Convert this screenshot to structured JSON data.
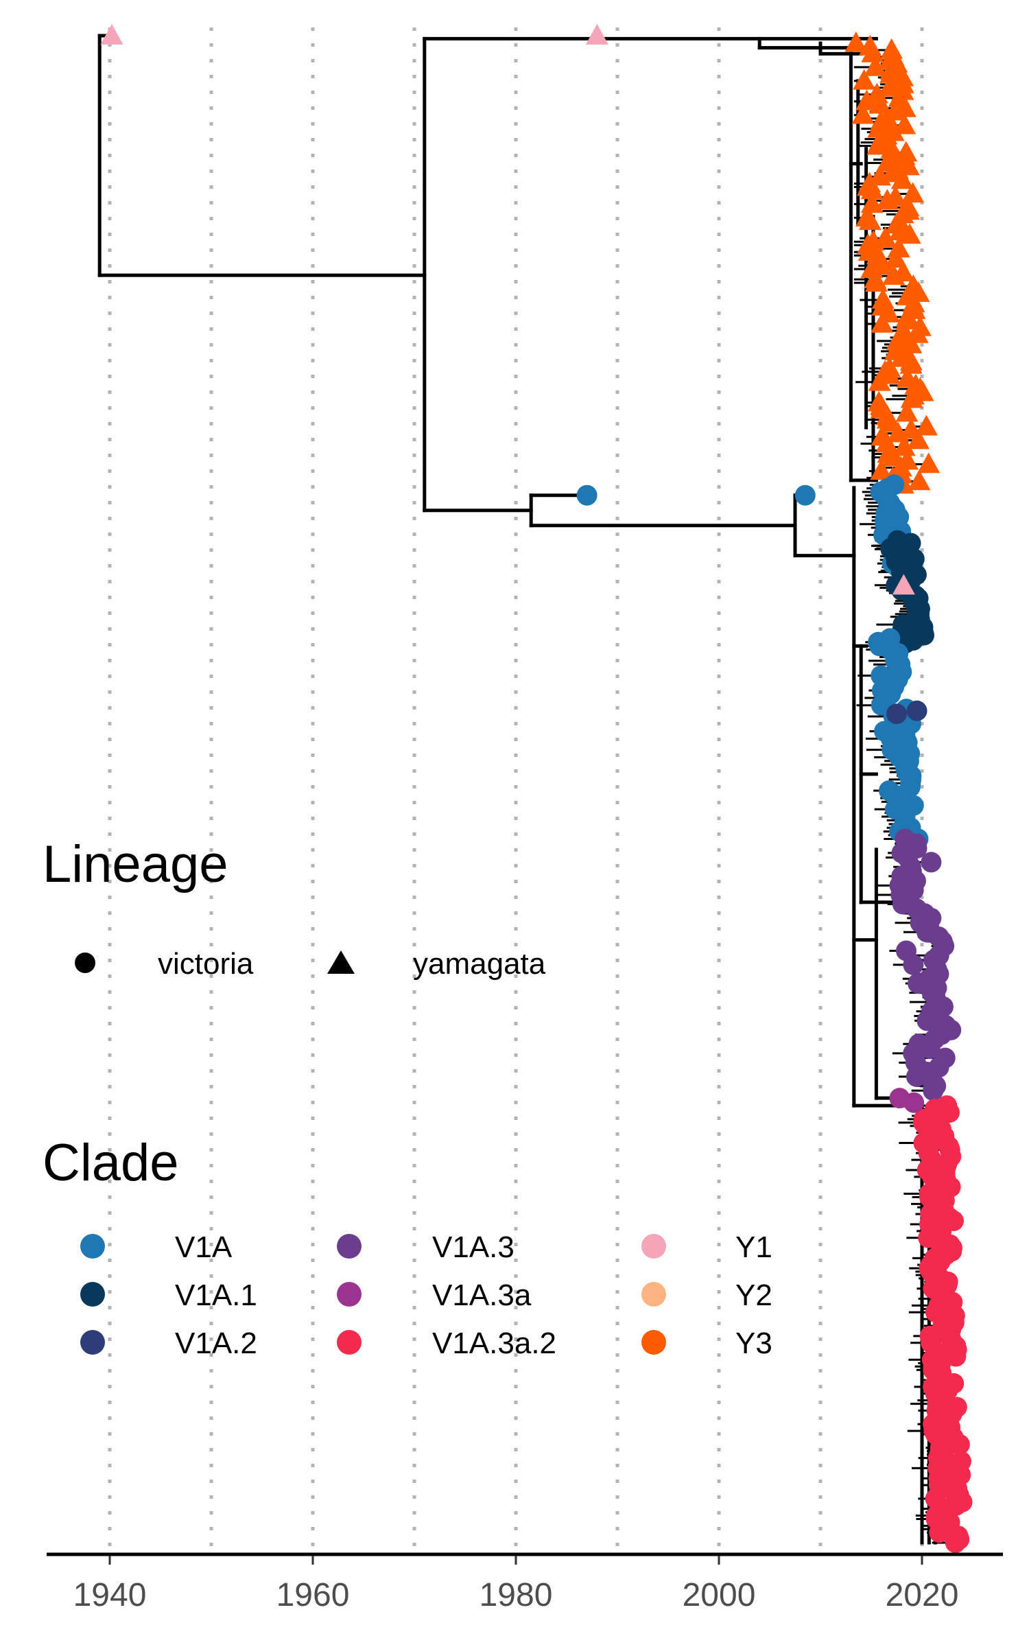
{
  "chart_data": {
    "type": "scatter",
    "title": "",
    "xlabel": "",
    "ylabel": "",
    "xlim": [
      1934,
      2028
    ],
    "x_ticks": [
      1940,
      1960,
      1980,
      2000,
      2020
    ],
    "x_tick_labels": [
      "1940",
      "1960",
      "1980",
      "2000",
      "2020"
    ],
    "grid": "vertical dotted lines every 10 years",
    "legend_position": "left",
    "colors": {
      "V1A": "#1f78b4",
      "V1A.1": "#08395c",
      "V1A.2": "#2c3e7a",
      "V1A.3": "#6a3d8f",
      "V1A.3a": "#9b3490",
      "V1A.3a.2": "#f22b4e",
      "Y1": "#f4a6b8",
      "Y2": "#fdb481",
      "Y3": "#ff5c00",
      "branch": "#000000",
      "grid": "#b3b3b3"
    },
    "legends": {
      "lineage": {
        "title": "Lineage",
        "items": [
          {
            "label": "victoria",
            "shape": "circle"
          },
          {
            "label": "yamagata",
            "shape": "triangle"
          }
        ]
      },
      "clade": {
        "title": "Clade",
        "columns": [
          [
            "V1A",
            "V1A.1",
            "V1A.2"
          ],
          [
            "V1A.3",
            "V1A.3a",
            "V1A.3a.2"
          ],
          [
            "Y1",
            "Y2",
            "Y3"
          ]
        ]
      }
    },
    "tips": [
      {
        "x": 1940.2,
        "row": 0.0,
        "clade": "Y1",
        "lineage": "yamagata"
      },
      {
        "x": 1988.0,
        "row": 0.0,
        "clade": "Y1",
        "lineage": "yamagata"
      },
      {
        "x": 1987.0,
        "row": 30.5,
        "clade": "V1A",
        "lineage": "victoria"
      },
      {
        "x": 2008.5,
        "row": 30.5,
        "clade": "V1A",
        "lineage": "victoria"
      },
      {
        "x": 2018.2,
        "row": 36.5,
        "clade": "Y1",
        "lineage": "yamagata"
      },
      {
        "x": 2017.5,
        "row": 45.0,
        "clade": "V1A.2",
        "lineage": "victoria"
      },
      {
        "x": 2019.5,
        "row": 44.8,
        "clade": "V1A.2",
        "lineage": "victoria"
      },
      {
        "x": 2017.8,
        "row": 70.5,
        "clade": "V1A.3a",
        "lineage": "victoria"
      },
      {
        "x": 2019.2,
        "row": 70.8,
        "clade": "V1A.3a",
        "lineage": "victoria"
      }
    ],
    "tip_clusters": [
      {
        "clade": "Y3",
        "lineage": "yamagata",
        "row_start": 0.5,
        "row_end": 29.8,
        "count": 130,
        "x_min": 2013.5,
        "x_max": 2020.8
      },
      {
        "clade": "V1A",
        "lineage": "victoria",
        "row_start": 29.8,
        "row_end": 35.5,
        "count": 25,
        "x_min": 2015.0,
        "x_max": 2018.6
      },
      {
        "clade": "V1A.1",
        "lineage": "victoria",
        "row_start": 33.5,
        "row_end": 40.3,
        "count": 40,
        "x_min": 2016.8,
        "x_max": 2020.4
      },
      {
        "clade": "V1A",
        "lineage": "victoria",
        "row_start": 40.0,
        "row_end": 53.3,
        "count": 55,
        "x_min": 2015.5,
        "x_max": 2019.8
      },
      {
        "clade": "V1A.3",
        "lineage": "victoria",
        "row_start": 53.3,
        "row_end": 70.0,
        "count": 55,
        "x_min": 2017.0,
        "x_max": 2023.5
      },
      {
        "clade": "V1A.3a.2",
        "lineage": "victoria",
        "row_start": 71.0,
        "row_end": 100.0,
        "count": 130,
        "x_min": 2020.0,
        "x_max": 2024.2
      }
    ],
    "branches": [
      {
        "x": 1939.0,
        "row_top": 0.0,
        "row_bot": 15.9,
        "kind": "v"
      },
      {
        "x0": 1939.0,
        "x1": 1971.0,
        "row": 15.9,
        "kind": "h"
      },
      {
        "x0": 1939.0,
        "x1": 1940.2,
        "row": 0.0,
        "kind": "h"
      },
      {
        "x": 1971.0,
        "row_top": 0.2,
        "row_bot": 31.5,
        "kind": "v"
      },
      {
        "x0": 1971.0,
        "x1": 2015.5,
        "row": 0.2,
        "kind": "h"
      },
      {
        "x0": 1971.0,
        "x1": 1981.5,
        "row": 31.5,
        "kind": "h"
      },
      {
        "x": 1981.5,
        "row_top": 30.5,
        "row_bot": 32.5,
        "kind": "v"
      },
      {
        "x0": 1981.5,
        "x1": 1987.0,
        "row": 30.5,
        "kind": "h"
      },
      {
        "x0": 1981.5,
        "x1": 2007.5,
        "row": 32.5,
        "kind": "h"
      },
      {
        "x": 2007.5,
        "row_top": 30.5,
        "row_bot": 34.5,
        "kind": "v"
      },
      {
        "x0": 2007.5,
        "x1": 2008.5,
        "row": 30.5,
        "kind": "h"
      },
      {
        "x0": 2007.5,
        "x1": 2013.3,
        "row": 34.5,
        "kind": "h"
      },
      {
        "x": 2004.0,
        "row_top": 0.2,
        "row_bot": 0.8,
        "kind": "v"
      },
      {
        "x0": 2004.0,
        "x1": 2014.5,
        "row": 0.8,
        "kind": "h"
      },
      {
        "x": 2010.0,
        "row_top": 0.5,
        "row_bot": 1.2,
        "kind": "v"
      },
      {
        "x0": 2010.0,
        "x1": 2014.0,
        "row": 1.2,
        "kind": "h"
      },
      {
        "x": 2013.0,
        "row_top": 0.8,
        "row_bot": 29.5,
        "kind": "v"
      },
      {
        "x": 2013.7,
        "row_top": 3.0,
        "row_bot": 12.5,
        "kind": "v"
      },
      {
        "x0": 2013.0,
        "x1": 2014.0,
        "row": 8.5,
        "kind": "h"
      },
      {
        "x": 2014.5,
        "row_top": 7.5,
        "row_bot": 26.0,
        "kind": "v"
      },
      {
        "x0": 2013.7,
        "x1": 2015.0,
        "row": 12.5,
        "kind": "h"
      },
      {
        "x": 2015.2,
        "row_top": 12.0,
        "row_bot": 29.5,
        "kind": "v"
      },
      {
        "x0": 2014.5,
        "x1": 2015.5,
        "row": 16.5,
        "kind": "h"
      },
      {
        "x0": 2013.0,
        "x1": 2015.5,
        "row": 29.5,
        "kind": "h"
      },
      {
        "x": 2013.3,
        "row_top": 30.0,
        "row_bot": 71.0,
        "kind": "v"
      },
      {
        "x": 2014.0,
        "row_top": 40.5,
        "row_bot": 57.5,
        "kind": "v"
      },
      {
        "x0": 2013.3,
        "x1": 2014.5,
        "row": 40.5,
        "kind": "h"
      },
      {
        "x0": 2014.0,
        "x1": 2015.5,
        "row": 49.0,
        "kind": "h"
      },
      {
        "x0": 2014.0,
        "x1": 2017.0,
        "row": 57.5,
        "kind": "h"
      },
      {
        "x": 2015.5,
        "row_top": 54.0,
        "row_bot": 70.5,
        "kind": "v"
      },
      {
        "x0": 2013.3,
        "x1": 2015.5,
        "row": 60.0,
        "kind": "h"
      },
      {
        "x0": 2015.5,
        "x1": 2017.5,
        "row": 70.5,
        "kind": "h"
      },
      {
        "x0": 2013.3,
        "x1": 2020.0,
        "row": 71.0,
        "kind": "h"
      },
      {
        "x": 2020.0,
        "row_top": 71.0,
        "row_bot": 100.0,
        "kind": "v"
      },
      {
        "x": 2020.7,
        "row_top": 76.0,
        "row_bot": 100.0,
        "kind": "v"
      },
      {
        "x": 2021.3,
        "row_top": 86.0,
        "row_bot": 100.0,
        "kind": "v"
      }
    ]
  }
}
